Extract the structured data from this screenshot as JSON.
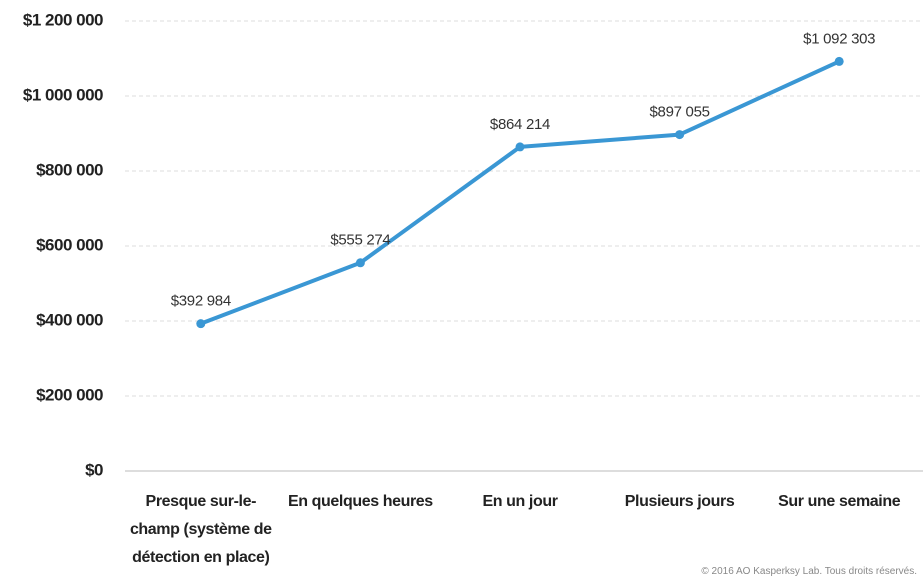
{
  "chart_data": {
    "type": "line",
    "categories": [
      "Presque sur-le-champ (système de détection en place)",
      "En quelques heures",
      "En un jour",
      "Plusieurs jours",
      "Sur une semaine"
    ],
    "values": [
      392984,
      555274,
      864214,
      897055,
      1092303
    ],
    "value_labels": [
      "$392 984",
      "$555 274",
      "$864 214",
      "$897 055",
      "$1 092 303"
    ],
    "color": "#3a97d4",
    "ylim": [
      0,
      1200000
    ],
    "yticks": [
      {
        "value": 0,
        "label": "$0"
      },
      {
        "value": 200000,
        "label": "$200 000"
      },
      {
        "value": 400000,
        "label": "$400 000"
      },
      {
        "value": 600000,
        "label": "$600 000"
      },
      {
        "value": 800000,
        "label": "$800 000"
      },
      {
        "value": 1000000,
        "label": "$1 000 000"
      },
      {
        "value": 1200000,
        "label": "$1 200 000"
      }
    ],
    "grid": true
  },
  "footer": "© 2016 AO Kasperksy Lab. Tous droits réservés."
}
